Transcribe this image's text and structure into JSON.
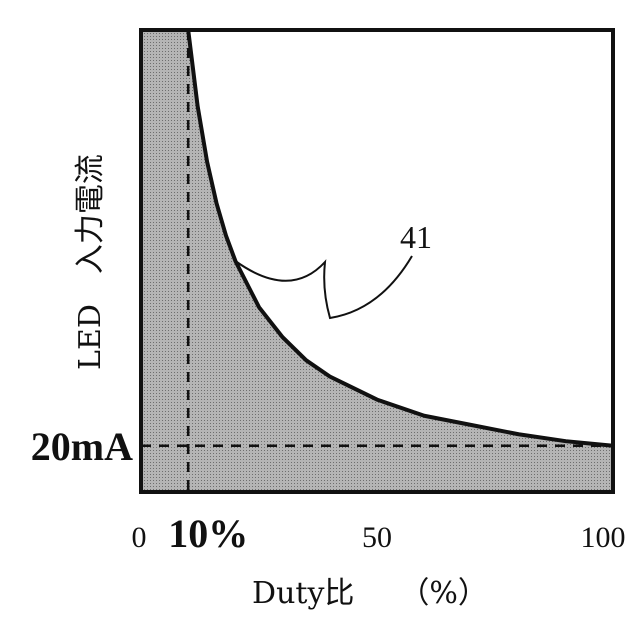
{
  "chart_data": {
    "type": "area",
    "title": "",
    "xlabel": "Duty比　　（%）",
    "ylabel": "LED　入力電流",
    "x_tick_labels": [
      {
        "x": 0,
        "label": "0",
        "bold": false
      },
      {
        "x": 10,
        "label": "10%",
        "bold": true
      },
      {
        "x": 50,
        "label": "50",
        "bold": false
      },
      {
        "x": 100,
        "label": "100",
        "bold": false
      }
    ],
    "reference_lines": {
      "vertical": {
        "x": 10
      },
      "horizontal": {
        "y": 20,
        "label": "20mA"
      }
    },
    "xlim": [
      0,
      100
    ],
    "ylim": [
      0,
      200
    ],
    "series": [
      {
        "x": [
          10,
          12,
          14,
          16,
          18,
          20,
          25,
          30,
          35,
          40,
          50,
          60,
          70,
          80,
          90,
          100
        ],
        "y": [
          200,
          167,
          143,
          125,
          111,
          100,
          80,
          67,
          57,
          50,
          40,
          33,
          29,
          25,
          22,
          20
        ]
      }
    ],
    "fill_under_curve": true,
    "annotations": [
      {
        "text": "41",
        "points_to": {
          "x": 20,
          "y": 100
        }
      }
    ],
    "grid": false,
    "legend": "none"
  },
  "colors": {
    "fill": "#a9a9a9",
    "curve": "#111111",
    "frame": "#111111"
  }
}
